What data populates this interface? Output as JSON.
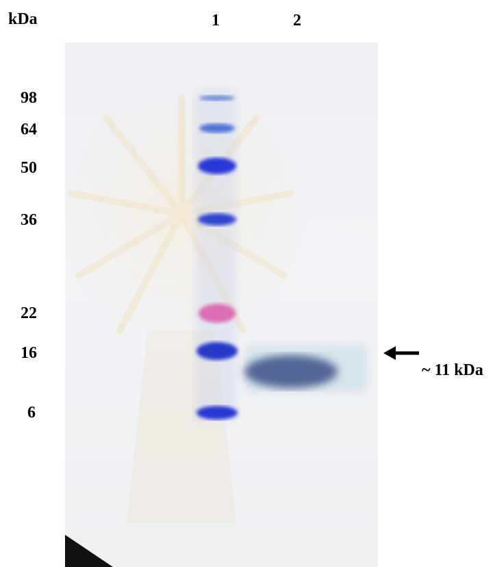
{
  "axis_unit": "kDa",
  "lanes": [
    {
      "label": "1"
    },
    {
      "label": "2"
    }
  ],
  "markers": [
    {
      "label": "98",
      "color": "#3a67c9"
    },
    {
      "label": "64",
      "color": "#2f57d0"
    },
    {
      "label": "50",
      "color": "#1b2fd6"
    },
    {
      "label": "36",
      "color": "#1f34c9"
    },
    {
      "label": "22",
      "color": "#d94fa6"
    },
    {
      "label": "16",
      "color": "#1a2fc4"
    },
    {
      "label": "6",
      "color": "#1f2fd1"
    }
  ],
  "sample_band": {
    "label": "~ 11 kDa",
    "color": "#3b4f86"
  }
}
